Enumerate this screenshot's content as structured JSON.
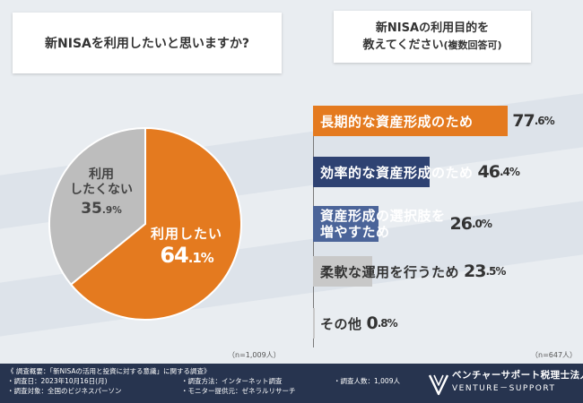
{
  "left_panel": {
    "title": "新NISAを利用したいと思いますか?",
    "n_note": "（n=1,009人）"
  },
  "right_panel": {
    "title_line1": "新NISAの利用目的を",
    "title_line2": "教えてください",
    "title_sub": "(複数回答可)",
    "n_note": "（n=647人）"
  },
  "chart_data": [
    {
      "type": "pie",
      "title": "新NISAを利用したいと思いますか?",
      "slices": [
        {
          "label": "利用したい",
          "value": 64.1,
          "int": "64",
          "dec": ".1%",
          "color": "#e47a1f"
        },
        {
          "label": "利用したくない",
          "label_line1": "利用",
          "label_line2": "したくない",
          "value": 35.9,
          "int": "35",
          "dec": ".9%",
          "color": "#bdbdbd"
        }
      ]
    },
    {
      "type": "bar",
      "orientation": "horizontal",
      "title": "新NISAの利用目的を教えてください(複数回答可)",
      "xlim": [
        0,
        100
      ],
      "bars": [
        {
          "label": "長期的な資産形成のため",
          "value": 77.6,
          "int": "77",
          "dec": ".6%",
          "color": "#e47a1f",
          "text_color": "#ffffff"
        },
        {
          "label": "効率的な資産形成のため",
          "value": 46.4,
          "int": "46",
          "dec": ".4%",
          "color": "#2e4272",
          "text_color": "#ffffff"
        },
        {
          "label": "資産形成の選択肢を",
          "label2": "増やすため",
          "value": 26.0,
          "int": "26",
          "dec": ".0%",
          "color": "#4b6499",
          "text_color": "#ffffff"
        },
        {
          "label": "柔軟な運用を行うため",
          "value": 23.5,
          "int": "23",
          "dec": ".5%",
          "color": "#c8c8c8",
          "text_color": "#333333"
        },
        {
          "label": "その他",
          "value": 0.8,
          "int": "0",
          "dec": ".8%",
          "color": "#c8c8c8",
          "text_color": "#333333"
        }
      ]
    }
  ],
  "footer": {
    "line1": "《 調査概要：「新NISAの活用と投資に対する意識」に関する調査》",
    "line2": "・調査日：2023年10月16日(月)",
    "line3": "・調査対象：全国のビジネスパーソン",
    "line4": "・調査方法：インターネット調査",
    "line5": "・モニター提供元：ゼネラルリサーチ",
    "line6": "・調査人数：1,009人",
    "logo_jp": "ベンチャーサポート税理士法人",
    "logo_en": "VENTURE－SUPPORT",
    "logo_icon": "venture-support-logo-icon"
  }
}
